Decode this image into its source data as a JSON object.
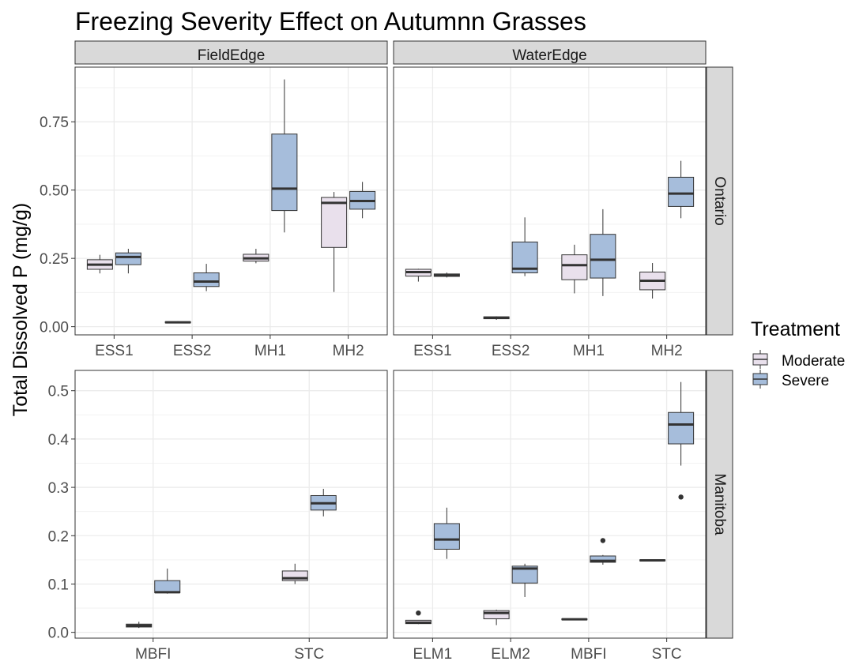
{
  "chart_data": {
    "type": "boxplot",
    "title": "Freezing Severity Effect on Autumnn Grasses",
    "ylabel": "Total Dissolved P (mg/g)",
    "legend": {
      "title": "Treatment",
      "position": "right",
      "entries": [
        {
          "name": "Moderate",
          "color": "#e9e0ec"
        },
        {
          "name": "Severe",
          "color": "#a6bddb"
        }
      ]
    },
    "colors": {
      "Moderate": "#e9e0ec",
      "Severe": "#a6bddb"
    },
    "grid": true,
    "column_strips": [
      "FieldEdge",
      "WaterEdge"
    ],
    "row_strips": [
      "Ontario",
      "Manitoba"
    ],
    "panels": [
      {
        "row": "Ontario",
        "column": "FieldEdge",
        "categories": [
          "ESS1",
          "ESS2",
          "MH1",
          "MH2"
        ],
        "ylim": [
          -0.03,
          0.95
        ],
        "yticks": [
          0.0,
          0.25,
          0.5,
          0.75
        ],
        "yticklabels": [
          "0.00",
          "0.25",
          "0.50",
          "0.75"
        ],
        "boxes": [
          {
            "category": "ESS1",
            "treatment": "Moderate",
            "min": 0.195,
            "q1": 0.21,
            "median": 0.227,
            "q3": 0.245,
            "max": 0.263,
            "outliers": []
          },
          {
            "category": "ESS1",
            "treatment": "Severe",
            "min": 0.195,
            "q1": 0.227,
            "median": 0.255,
            "q3": 0.27,
            "max": 0.285,
            "outliers": []
          },
          {
            "category": "ESS2",
            "treatment": "Moderate",
            "min": 0.012,
            "q1": 0.014,
            "median": 0.016,
            "q3": 0.018,
            "max": 0.02,
            "outliers": []
          },
          {
            "category": "ESS2",
            "treatment": "Severe",
            "min": 0.13,
            "q1": 0.147,
            "median": 0.165,
            "q3": 0.197,
            "max": 0.23,
            "outliers": []
          },
          {
            "category": "MH1",
            "treatment": "Moderate",
            "min": 0.232,
            "q1": 0.24,
            "median": 0.25,
            "q3": 0.265,
            "max": 0.285,
            "outliers": []
          },
          {
            "category": "MH1",
            "treatment": "Severe",
            "min": 0.345,
            "q1": 0.425,
            "median": 0.505,
            "q3": 0.705,
            "max": 0.905,
            "outliers": []
          },
          {
            "category": "MH2",
            "treatment": "Moderate",
            "min": 0.127,
            "q1": 0.29,
            "median": 0.453,
            "q3": 0.473,
            "max": 0.493,
            "outliers": []
          },
          {
            "category": "MH2",
            "treatment": "Severe",
            "min": 0.397,
            "q1": 0.43,
            "median": 0.46,
            "q3": 0.495,
            "max": 0.53,
            "outliers": []
          }
        ]
      },
      {
        "row": "Ontario",
        "column": "WaterEdge",
        "categories": [
          "ESS1",
          "ESS2",
          "MH1",
          "MH2"
        ],
        "ylim": [
          -0.03,
          0.95
        ],
        "yticks": [
          0.0,
          0.25,
          0.5,
          0.75
        ],
        "yticklabels": [
          "0.00",
          "0.25",
          "0.50",
          "0.75"
        ],
        "boxes": [
          {
            "category": "ESS1",
            "treatment": "Moderate",
            "min": 0.165,
            "q1": 0.185,
            "median": 0.2,
            "q3": 0.21,
            "max": 0.212,
            "outliers": []
          },
          {
            "category": "ESS1",
            "treatment": "Severe",
            "min": 0.18,
            "q1": 0.184,
            "median": 0.188,
            "q3": 0.193,
            "max": 0.198,
            "outliers": []
          },
          {
            "category": "ESS2",
            "treatment": "Moderate",
            "min": 0.025,
            "q1": 0.029,
            "median": 0.033,
            "q3": 0.036,
            "max": 0.038,
            "outliers": []
          },
          {
            "category": "ESS2",
            "treatment": "Severe",
            "min": 0.185,
            "q1": 0.197,
            "median": 0.212,
            "q3": 0.31,
            "max": 0.4,
            "outliers": []
          },
          {
            "category": "MH1",
            "treatment": "Moderate",
            "min": 0.122,
            "q1": 0.172,
            "median": 0.225,
            "q3": 0.263,
            "max": 0.3,
            "outliers": []
          },
          {
            "category": "MH1",
            "treatment": "Severe",
            "min": 0.112,
            "q1": 0.178,
            "median": 0.245,
            "q3": 0.338,
            "max": 0.43,
            "outliers": []
          },
          {
            "category": "MH2",
            "treatment": "Moderate",
            "min": 0.103,
            "q1": 0.135,
            "median": 0.168,
            "q3": 0.2,
            "max": 0.233,
            "outliers": []
          },
          {
            "category": "MH2",
            "treatment": "Severe",
            "min": 0.397,
            "q1": 0.44,
            "median": 0.487,
            "q3": 0.547,
            "max": 0.607,
            "outliers": []
          }
        ]
      },
      {
        "row": "Manitoba",
        "column": "FieldEdge",
        "categories": [
          "MBFI",
          "STC"
        ],
        "ylim": [
          -0.012,
          0.542
        ],
        "yticks": [
          0.0,
          0.1,
          0.2,
          0.3,
          0.4,
          0.5
        ],
        "yticklabels": [
          "0.0",
          "0.1",
          "0.2",
          "0.3",
          "0.4",
          "0.5"
        ],
        "boxes": [
          {
            "category": "MBFI",
            "treatment": "Moderate",
            "min": 0.009,
            "q1": 0.011,
            "median": 0.014,
            "q3": 0.017,
            "max": 0.022,
            "outliers": []
          },
          {
            "category": "MBFI",
            "treatment": "Severe",
            "min": 0.08,
            "q1": 0.082,
            "median": 0.083,
            "q3": 0.107,
            "max": 0.132,
            "outliers": []
          },
          {
            "category": "STC",
            "treatment": "Moderate",
            "min": 0.1,
            "q1": 0.107,
            "median": 0.112,
            "q3": 0.127,
            "max": 0.142,
            "outliers": []
          },
          {
            "category": "STC",
            "treatment": "Severe",
            "min": 0.24,
            "q1": 0.253,
            "median": 0.267,
            "q3": 0.283,
            "max": 0.297,
            "outliers": []
          }
        ]
      },
      {
        "row": "Manitoba",
        "column": "WaterEdge",
        "categories": [
          "ELM1",
          "ELM2",
          "MBFI",
          "STC"
        ],
        "ylim": [
          -0.012,
          0.542
        ],
        "yticks": [
          0.0,
          0.1,
          0.2,
          0.3,
          0.4,
          0.5
        ],
        "yticklabels": [
          "0.0",
          "0.1",
          "0.2",
          "0.3",
          "0.4",
          "0.5"
        ],
        "boxes": [
          {
            "category": "ELM1",
            "treatment": "Moderate",
            "min": 0.017,
            "q1": 0.018,
            "median": 0.02,
            "q3": 0.025,
            "max": 0.025,
            "outliers": [
              0.04
            ]
          },
          {
            "category": "ELM1",
            "treatment": "Severe",
            "min": 0.152,
            "q1": 0.172,
            "median": 0.192,
            "q3": 0.225,
            "max": 0.258,
            "outliers": []
          },
          {
            "category": "ELM2",
            "treatment": "Moderate",
            "min": 0.015,
            "q1": 0.028,
            "median": 0.04,
            "q3": 0.045,
            "max": 0.047,
            "outliers": []
          },
          {
            "category": "ELM2",
            "treatment": "Severe",
            "min": 0.073,
            "q1": 0.102,
            "median": 0.132,
            "q3": 0.137,
            "max": 0.142,
            "outliers": []
          },
          {
            "category": "MBFI",
            "treatment": "Moderate",
            "min": 0.025,
            "q1": 0.026,
            "median": 0.027,
            "q3": 0.028,
            "max": 0.028,
            "outliers": []
          },
          {
            "category": "MBFI",
            "treatment": "Severe",
            "min": 0.14,
            "q1": 0.145,
            "median": 0.148,
            "q3": 0.158,
            "max": 0.16,
            "outliers": [
              0.19
            ]
          },
          {
            "category": "STC",
            "treatment": "Moderate",
            "min": 0.147,
            "q1": 0.148,
            "median": 0.149,
            "q3": 0.15,
            "max": 0.151,
            "outliers": []
          },
          {
            "category": "STC",
            "treatment": "Severe",
            "min": 0.345,
            "q1": 0.39,
            "median": 0.43,
            "q3": 0.455,
            "max": 0.518,
            "outliers": [
              0.28
            ]
          }
        ]
      }
    ]
  }
}
